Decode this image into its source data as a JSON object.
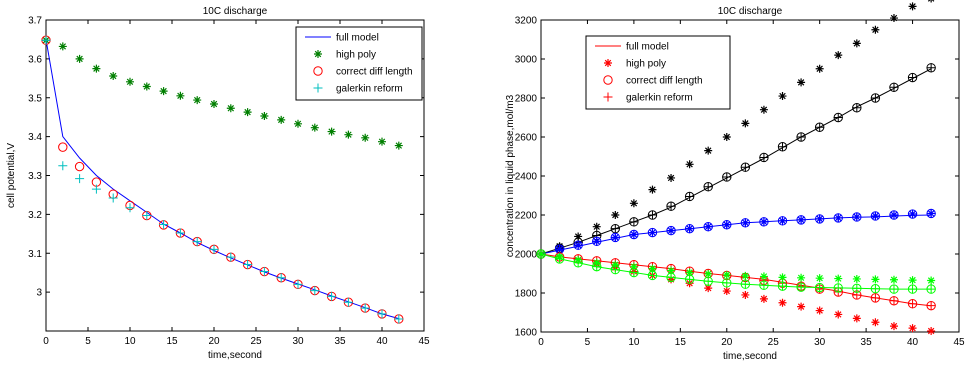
{
  "chart_data": [
    {
      "type": "line",
      "title": "10C discharge",
      "xlabel": "time,second",
      "ylabel": "cell potential,V",
      "xlim": [
        0,
        45
      ],
      "ylim": [
        2.9,
        3.7
      ],
      "xticks": [
        "0",
        "5",
        "10",
        "15",
        "20",
        "25",
        "30",
        "35",
        "40",
        "45"
      ],
      "yticks": [
        "3",
        "3.1",
        "3.2",
        "3.3",
        "3.4",
        "3.5",
        "3.6",
        "3.7"
      ],
      "legend_position": "top-right",
      "grid": false,
      "series": [
        {
          "name": "full model",
          "style": "line",
          "color": "#0000ff",
          "x": [
            0,
            2,
            4,
            6,
            8,
            10,
            12,
            14,
            16,
            18,
            20,
            22,
            24,
            26,
            28,
            30,
            32,
            34,
            36,
            38,
            40,
            42
          ],
          "values": [
            3.65,
            3.4,
            3.345,
            3.3,
            3.265,
            3.235,
            3.205,
            3.175,
            3.152,
            3.128,
            3.107,
            3.088,
            3.07,
            3.052,
            3.036,
            3.021,
            3.006,
            2.99,
            2.975,
            2.96,
            2.944,
            2.932
          ]
        },
        {
          "name": "high poly",
          "style": "star",
          "color": "#007f00",
          "x": [
            0,
            2,
            4,
            6,
            8,
            10,
            12,
            14,
            16,
            18,
            20,
            22,
            24,
            26,
            28,
            30,
            32,
            34,
            36,
            38,
            40,
            42
          ],
          "values": [
            3.648,
            3.632,
            3.6,
            3.575,
            3.556,
            3.541,
            3.529,
            3.517,
            3.505,
            3.494,
            3.484,
            3.473,
            3.463,
            3.453,
            3.443,
            3.433,
            3.423,
            3.413,
            3.405,
            3.397,
            3.387,
            3.377
          ]
        },
        {
          "name": "correct diff length",
          "style": "circle",
          "color": "#ff0000",
          "x": [
            0,
            2,
            4,
            6,
            8,
            10,
            12,
            14,
            16,
            18,
            20,
            22,
            24,
            26,
            28,
            30,
            32,
            34,
            36,
            38,
            40,
            42
          ],
          "values": [
            3.648,
            3.373,
            3.323,
            3.283,
            3.252,
            3.223,
            3.197,
            3.173,
            3.152,
            3.13,
            3.11,
            3.09,
            3.071,
            3.053,
            3.037,
            3.02,
            3.004,
            2.989,
            2.974,
            2.959,
            2.944,
            2.931
          ]
        },
        {
          "name": "galerkin reform",
          "style": "plus",
          "color": "#00bfbf",
          "x": [
            0,
            2,
            4,
            6,
            8,
            10,
            12,
            14,
            16,
            18,
            20,
            22,
            24,
            26,
            28,
            30,
            32,
            34,
            36,
            38,
            40,
            42
          ],
          "values": [
            3.648,
            3.325,
            3.292,
            3.265,
            3.242,
            3.217,
            3.197,
            3.174,
            3.152,
            3.13,
            3.11,
            3.09,
            3.071,
            3.053,
            3.037,
            3.02,
            3.004,
            2.989,
            2.974,
            2.959,
            2.944,
            2.931
          ]
        }
      ]
    },
    {
      "type": "line",
      "title": "10C discharge",
      "xlabel": "time,second",
      "ylabel": "concentration in liquid phase,mol/m3",
      "xlim": [
        0,
        45
      ],
      "ylim": [
        1600,
        3200
      ],
      "xticks": [
        "0",
        "5",
        "10",
        "15",
        "20",
        "25",
        "30",
        "35",
        "40",
        "45"
      ],
      "yticks": [
        "1600",
        "1800",
        "2000",
        "2200",
        "2400",
        "2600",
        "2800",
        "3000",
        "3200"
      ],
      "legend_position": "top-left",
      "grid": false,
      "legend": [
        {
          "name": "full model",
          "style": "line",
          "color": "#ff0000"
        },
        {
          "name": "high poly",
          "style": "star",
          "color": "#ff0000"
        },
        {
          "name": "correct diff length",
          "style": "circle",
          "color": "#ff0000"
        },
        {
          "name": "galerkin reform",
          "style": "plus",
          "color": "#ff0000"
        }
      ],
      "series": [
        {
          "style": "line",
          "color": "#000000",
          "x": [
            0,
            2,
            4,
            6,
            8,
            10,
            12,
            14,
            16,
            18,
            20,
            22,
            24,
            26,
            28,
            30,
            32,
            34,
            36,
            38,
            40,
            42
          ],
          "values": [
            2000,
            2030,
            2060,
            2095,
            2130,
            2165,
            2200,
            2240,
            2290,
            2340,
            2390,
            2440,
            2490,
            2545,
            2600,
            2650,
            2700,
            2755,
            2800,
            2850,
            2900,
            2950
          ]
        },
        {
          "style": "circle",
          "color": "#000000",
          "x": [
            0,
            2,
            4,
            6,
            8,
            10,
            12,
            14,
            16,
            18,
            20,
            22,
            24,
            26,
            28,
            30,
            32,
            34,
            36,
            38,
            40,
            42
          ],
          "values": [
            2000,
            2030,
            2060,
            2095,
            2130,
            2165,
            2200,
            2245,
            2295,
            2345,
            2395,
            2445,
            2495,
            2550,
            2600,
            2650,
            2700,
            2750,
            2800,
            2855,
            2905,
            2955
          ]
        },
        {
          "style": "plus",
          "color": "#000000",
          "x": [
            0,
            2,
            4,
            6,
            8,
            10,
            12,
            14,
            16,
            18,
            20,
            22,
            24,
            26,
            28,
            30,
            32,
            34,
            36,
            38,
            40,
            42
          ],
          "values": [
            2000,
            2030,
            2060,
            2095,
            2130,
            2165,
            2200,
            2245,
            2295,
            2345,
            2395,
            2445,
            2495,
            2550,
            2600,
            2650,
            2700,
            2750,
            2800,
            2855,
            2905,
            2955
          ]
        },
        {
          "style": "star",
          "color": "#000000",
          "x": [
            0,
            2,
            4,
            6,
            8,
            10,
            12,
            14,
            16,
            18,
            20,
            22,
            24,
            26,
            28,
            30,
            32,
            34,
            36,
            38,
            40,
            42
          ],
          "values": [
            2000,
            2040,
            2090,
            2140,
            2200,
            2260,
            2330,
            2390,
            2460,
            2530,
            2600,
            2670,
            2740,
            2810,
            2880,
            2950,
            3020,
            3080,
            3150,
            3210,
            3270,
            3310
          ]
        },
        {
          "style": "line",
          "color": "#0000ff",
          "x": [
            0,
            2,
            4,
            6,
            8,
            10,
            12,
            14,
            16,
            18,
            20,
            22,
            24,
            26,
            28,
            30,
            32,
            34,
            36,
            38,
            40,
            42
          ],
          "values": [
            2000,
            2020,
            2040,
            2060,
            2080,
            2100,
            2110,
            2120,
            2130,
            2140,
            2150,
            2160,
            2165,
            2170,
            2175,
            2180,
            2185,
            2188,
            2190,
            2195,
            2198,
            2200
          ]
        },
        {
          "style": "circle",
          "color": "#0000ff",
          "x": [
            0,
            2,
            4,
            6,
            8,
            10,
            12,
            14,
            16,
            18,
            20,
            22,
            24,
            26,
            28,
            30,
            32,
            34,
            36,
            38,
            40,
            42
          ],
          "values": [
            2000,
            2025,
            2045,
            2065,
            2085,
            2100,
            2110,
            2120,
            2130,
            2140,
            2150,
            2160,
            2165,
            2170,
            2175,
            2180,
            2185,
            2190,
            2195,
            2200,
            2205,
            2208
          ]
        },
        {
          "style": "plus",
          "color": "#0000ff",
          "x": [
            0,
            2,
            4,
            6,
            8,
            10,
            12,
            14,
            16,
            18,
            20,
            22,
            24,
            26,
            28,
            30,
            32,
            34,
            36,
            38,
            40,
            42
          ],
          "values": [
            2000,
            2020,
            2045,
            2065,
            2085,
            2100,
            2110,
            2120,
            2130,
            2140,
            2150,
            2160,
            2165,
            2170,
            2175,
            2180,
            2185,
            2190,
            2195,
            2200,
            2205,
            2208
          ]
        },
        {
          "style": "star",
          "color": "#0000ff",
          "x": [
            0,
            2,
            4,
            6,
            8,
            10,
            12,
            14,
            16,
            18,
            20,
            22,
            24,
            26,
            28,
            30,
            32,
            34,
            36,
            38,
            40,
            42
          ],
          "values": [
            2000,
            2025,
            2045,
            2065,
            2085,
            2100,
            2110,
            2120,
            2130,
            2140,
            2150,
            2160,
            2165,
            2170,
            2175,
            2180,
            2185,
            2190,
            2195,
            2200,
            2205,
            2208
          ]
        },
        {
          "style": "line",
          "color": "#ff0000",
          "x": [
            0,
            2,
            4,
            6,
            8,
            10,
            12,
            14,
            16,
            18,
            20,
            22,
            24,
            26,
            28,
            30,
            32,
            34,
            36,
            38,
            40,
            42
          ],
          "values": [
            2000,
            1985,
            1975,
            1965,
            1955,
            1945,
            1935,
            1925,
            1912,
            1900,
            1890,
            1880,
            1870,
            1855,
            1840,
            1825,
            1810,
            1790,
            1775,
            1760,
            1745,
            1735
          ]
        },
        {
          "style": "circle",
          "color": "#ff0000",
          "x": [
            0,
            2,
            4,
            6,
            8,
            10,
            12,
            14,
            16,
            18,
            20,
            22,
            24,
            26,
            28,
            30,
            32,
            34,
            36,
            38,
            40,
            42
          ],
          "values": [
            2000,
            1985,
            1975,
            1965,
            1955,
            1945,
            1935,
            1925,
            1912,
            1900,
            1890,
            1880,
            1865,
            1850,
            1835,
            1820,
            1805,
            1790,
            1775,
            1760,
            1745,
            1735
          ]
        },
        {
          "style": "plus",
          "color": "#ff0000",
          "x": [
            0,
            2,
            4,
            6,
            8,
            10,
            12,
            14,
            16,
            18,
            20,
            22,
            24,
            26,
            28,
            30,
            32,
            34,
            36,
            38,
            40,
            42
          ],
          "values": [
            2000,
            1985,
            1975,
            1965,
            1955,
            1945,
            1935,
            1925,
            1912,
            1900,
            1890,
            1880,
            1865,
            1850,
            1835,
            1820,
            1805,
            1790,
            1775,
            1760,
            1745,
            1735
          ]
        },
        {
          "style": "star",
          "color": "#ff0000",
          "x": [
            0,
            2,
            4,
            6,
            8,
            10,
            12,
            14,
            16,
            18,
            20,
            22,
            24,
            26,
            28,
            30,
            32,
            34,
            36,
            38,
            40,
            42
          ],
          "values": [
            2000,
            1985,
            1970,
            1950,
            1930,
            1910,
            1890,
            1870,
            1850,
            1825,
            1810,
            1790,
            1770,
            1750,
            1730,
            1710,
            1690,
            1670,
            1650,
            1630,
            1620,
            1605
          ]
        },
        {
          "style": "line",
          "color": "#00ff00",
          "x": [
            0,
            2,
            4,
            6,
            8,
            10,
            12,
            14,
            16,
            18,
            20,
            22,
            24,
            26,
            28,
            30,
            32,
            34,
            36,
            38,
            40,
            42
          ],
          "values": [
            2000,
            1975,
            1955,
            1935,
            1920,
            1905,
            1890,
            1880,
            1870,
            1860,
            1852,
            1845,
            1840,
            1835,
            1830,
            1828,
            1826,
            1824,
            1822,
            1820,
            1820,
            1820
          ]
        },
        {
          "style": "circle",
          "color": "#00ff00",
          "x": [
            0,
            2,
            4,
            6,
            8,
            10,
            12,
            14,
            16,
            18,
            20,
            22,
            24,
            26,
            28,
            30,
            32,
            34,
            36,
            38,
            40,
            42
          ],
          "values": [
            2000,
            1975,
            1955,
            1935,
            1920,
            1905,
            1890,
            1880,
            1870,
            1860,
            1852,
            1845,
            1840,
            1835,
            1830,
            1828,
            1826,
            1824,
            1822,
            1820,
            1820,
            1820
          ]
        },
        {
          "style": "plus",
          "color": "#00ff00",
          "x": [
            0,
            2,
            4,
            6,
            8,
            10,
            12,
            14,
            16,
            18,
            20,
            22,
            24,
            26,
            28,
            30,
            32,
            34,
            36,
            38,
            40,
            42
          ],
          "values": [
            2000,
            1975,
            1955,
            1935,
            1920,
            1905,
            1890,
            1880,
            1870,
            1860,
            1852,
            1845,
            1840,
            1835,
            1830,
            1828,
            1826,
            1824,
            1822,
            1820,
            1820,
            1820
          ]
        },
        {
          "style": "star",
          "color": "#00ff00",
          "x": [
            0,
            2,
            4,
            6,
            8,
            10,
            12,
            14,
            16,
            18,
            20,
            22,
            24,
            26,
            28,
            30,
            32,
            34,
            36,
            38,
            40,
            42
          ],
          "values": [
            2000,
            1985,
            1970,
            1955,
            1945,
            1935,
            1925,
            1915,
            1905,
            1898,
            1893,
            1888,
            1885,
            1880,
            1878,
            1876,
            1874,
            1872,
            1870,
            1868,
            1866,
            1864
          ]
        }
      ]
    }
  ]
}
